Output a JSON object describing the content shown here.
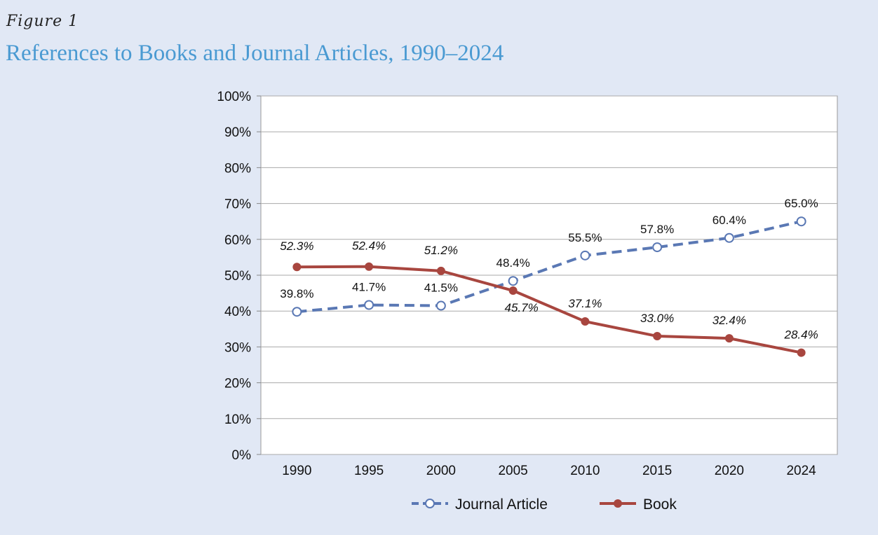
{
  "figure_label": "Figure 1",
  "chart_data": {
    "type": "line",
    "title": "References to Books and Journal Articles, 1990–2024",
    "xlabel": "",
    "ylabel": "",
    "categories": [
      "1990",
      "1995",
      "2000",
      "2005",
      "2010",
      "2015",
      "2020",
      "2024"
    ],
    "ylim": [
      0,
      100
    ],
    "yticks": [
      "0%",
      "10%",
      "20%",
      "30%",
      "40%",
      "50%",
      "60%",
      "70%",
      "80%",
      "90%",
      "100%"
    ],
    "grid": true,
    "legend_position": "bottom",
    "series": [
      {
        "name": "Journal Article",
        "color": "#5a78b4",
        "style": "dashed",
        "marker": "open-circle",
        "values": [
          39.8,
          41.7,
          41.5,
          48.4,
          55.5,
          57.8,
          60.4,
          65.0
        ],
        "labels": [
          "39.8%",
          "41.7%",
          "41.5%",
          "48.4%",
          "55.5%",
          "57.8%",
          "60.4%",
          "65.0%"
        ]
      },
      {
        "name": "Book",
        "color": "#a8463f",
        "style": "solid",
        "marker": "filled-circle",
        "values": [
          52.3,
          52.4,
          51.2,
          45.7,
          37.1,
          33.0,
          32.4,
          28.4
        ],
        "labels": [
          "52.3%",
          "52.4%",
          "51.2%",
          "45.7%",
          "37.1%",
          "33.0%",
          "32.4%",
          "28.4%"
        ]
      }
    ]
  }
}
